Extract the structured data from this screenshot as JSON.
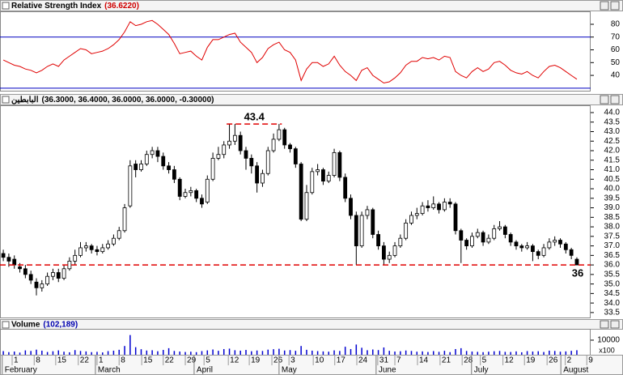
{
  "chart_data": [
    {
      "type": "line",
      "title": "Relative Strength Index",
      "subtitle": "(36.6220)",
      "color": "#e00000",
      "values": [
        52,
        50,
        48,
        47,
        45,
        44,
        42,
        44,
        47,
        49,
        47,
        52,
        55,
        58,
        61,
        60,
        57,
        58,
        59,
        61,
        64,
        68,
        74,
        82,
        79,
        80,
        82,
        83,
        80,
        76,
        72,
        65,
        57,
        58,
        59,
        55,
        52,
        62,
        68,
        68,
        70,
        72,
        73,
        66,
        62,
        58,
        50,
        54,
        61,
        64,
        66,
        60,
        58,
        52,
        36,
        45,
        50,
        50,
        47,
        49,
        55,
        48,
        43,
        40,
        36,
        44,
        46,
        40,
        37,
        34,
        35,
        38,
        42,
        48,
        51,
        51,
        54,
        53,
        54,
        52,
        55,
        54,
        43,
        40,
        38,
        43,
        46,
        43,
        45,
        50,
        51,
        48,
        44,
        42,
        41,
        43,
        40,
        38,
        43,
        47,
        48,
        46,
        43,
        40,
        37
      ],
      "xlim": [
        -0.6,
        106.5
      ],
      "ylim": [
        28,
        89.5
      ],
      "yticks": [
        40,
        50,
        60,
        70,
        80
      ],
      "reference_lines": [
        30,
        70
      ],
      "reference_color": "#0000c0"
    },
    {
      "type": "candlestick",
      "title": "البابطين",
      "subtitle": "(36.3000, 36.4000, 36.0000, 36.0000, -0.30000)",
      "up_color": "#ffffff",
      "down_color": "#000000",
      "open": [
        36.6,
        36.4,
        36.3,
        35.9,
        35.8,
        35.5,
        35.1,
        34.8,
        35.0,
        35.4,
        35.6,
        35.3,
        35.8,
        36.2,
        36.5,
        36.9,
        37.0,
        36.8,
        36.7,
        36.9,
        37.1,
        37.4,
        37.8,
        39.1,
        41.3,
        41.0,
        41.3,
        41.8,
        42.0,
        41.7,
        41.2,
        41.0,
        40.5,
        39.6,
        39.8,
        39.9,
        39.5,
        39.3,
        40.5,
        41.6,
        41.8,
        42.3,
        42.5,
        42.8,
        42.0,
        41.6,
        41.2,
        40.3,
        40.8,
        42.0,
        42.6,
        43.1,
        42.3,
        42.1,
        41.3,
        38.4,
        39.8,
        40.9,
        41.0,
        40.4,
        40.7,
        41.9,
        40.6,
        39.5,
        38.6,
        37.0,
        38.6,
        38.9,
        37.6,
        37.0,
        36.3,
        36.5,
        37.0,
        37.4,
        38.2,
        38.6,
        38.7,
        39.1,
        39.0,
        39.2,
        38.9,
        39.3,
        39.2,
        37.8,
        37.3,
        37.0,
        37.5,
        37.7,
        37.2,
        37.4,
        37.9,
        38.0,
        37.6,
        37.2,
        37.0,
        36.9,
        37.0,
        36.7,
        36.5,
        36.9,
        37.2,
        37.3,
        37.1,
        36.8,
        36.3
      ],
      "high": [
        36.8,
        36.6,
        36.5,
        36.1,
        36.0,
        35.7,
        35.3,
        35.2,
        35.6,
        35.8,
        35.8,
        36.0,
        36.4,
        36.8,
        37.2,
        37.2,
        37.1,
        37.0,
        37.1,
        37.3,
        37.6,
        38.0,
        39.2,
        41.5,
        41.5,
        41.5,
        42.0,
        42.2,
        42.2,
        41.9,
        41.4,
        41.2,
        40.6,
        40.0,
        40.1,
        40.0,
        39.7,
        40.7,
        41.9,
        42.2,
        42.5,
        43.4,
        43.4,
        43.0,
        42.2,
        41.8,
        41.4,
        41.0,
        42.2,
        42.9,
        43.4,
        43.2,
        42.4,
        42.2,
        41.4,
        40.2,
        41.1,
        41.3,
        41.1,
        40.9,
        42.1,
        42.0,
        40.8,
        39.7,
        38.8,
        38.8,
        39.1,
        39.0,
        37.8,
        37.2,
        36.7,
        37.2,
        37.6,
        38.4,
        38.8,
        39.0,
        39.3,
        39.4,
        39.6,
        39.3,
        39.5,
        39.5,
        39.3,
        37.9,
        37.4,
        37.7,
        37.9,
        37.8,
        37.6,
        38.1,
        38.3,
        38.1,
        37.7,
        37.3,
        37.1,
        37.2,
        37.1,
        36.8,
        37.1,
        37.4,
        37.5,
        37.4,
        37.2,
        36.9,
        36.4
      ],
      "low": [
        36.2,
        35.9,
        35.8,
        35.6,
        35.3,
        35.0,
        34.4,
        34.6,
        34.9,
        35.2,
        35.1,
        35.2,
        35.7,
        36.0,
        36.4,
        36.7,
        36.6,
        36.5,
        36.6,
        36.8,
        37.0,
        37.3,
        37.7,
        39.0,
        40.6,
        40.9,
        41.2,
        41.6,
        41.4,
        41.0,
        40.8,
        40.3,
        39.4,
        39.5,
        39.6,
        39.3,
        39.0,
        39.2,
        40.4,
        41.5,
        41.6,
        42.1,
        42.3,
        41.8,
        41.0,
        40.8,
        39.8,
        40.1,
        40.7,
        41.9,
        42.5,
        42.1,
        41.9,
        41.1,
        38.3,
        38.3,
        39.7,
        40.7,
        40.2,
        40.3,
        40.6,
        40.4,
        39.3,
        38.4,
        36.0,
        36.9,
        38.4,
        37.4,
        36.8,
        36.0,
        36.1,
        36.4,
        36.9,
        37.3,
        38.1,
        38.4,
        38.6,
        38.8,
        38.9,
        38.7,
        38.8,
        39.0,
        37.6,
        36.1,
        36.8,
        36.9,
        37.4,
        37.0,
        37.1,
        37.3,
        37.8,
        37.4,
        37.0,
        36.8,
        36.7,
        36.8,
        36.2,
        36.3,
        36.4,
        36.8,
        37.0,
        36.9,
        36.6,
        36.3,
        36.0
      ],
      "close": [
        36.4,
        36.2,
        36.0,
        35.8,
        35.5,
        35.2,
        34.8,
        35.0,
        35.4,
        35.6,
        35.3,
        35.8,
        36.2,
        36.5,
        36.9,
        37.0,
        36.8,
        36.7,
        36.9,
        37.1,
        37.4,
        37.8,
        39.0,
        41.2,
        41.0,
        41.3,
        41.8,
        42.0,
        41.7,
        41.2,
        41.0,
        40.5,
        39.6,
        39.8,
        39.9,
        39.5,
        39.2,
        40.5,
        41.6,
        41.8,
        42.3,
        42.5,
        42.8,
        42.0,
        41.6,
        41.2,
        40.3,
        40.8,
        42.0,
        42.6,
        43.1,
        42.3,
        42.1,
        41.3,
        38.4,
        39.8,
        40.9,
        41.0,
        40.4,
        40.7,
        41.9,
        40.6,
        39.5,
        38.6,
        37.0,
        38.6,
        38.9,
        37.6,
        37.0,
        36.3,
        36.5,
        37.0,
        37.4,
        38.2,
        38.6,
        38.7,
        39.1,
        39.0,
        39.2,
        38.9,
        39.3,
        39.2,
        37.8,
        37.3,
        37.0,
        37.5,
        37.7,
        37.2,
        37.4,
        37.9,
        38.0,
        37.6,
        37.2,
        37.0,
        36.9,
        37.0,
        36.7,
        36.5,
        36.9,
        37.2,
        37.3,
        37.1,
        36.8,
        36.5,
        36.0
      ],
      "xlim": [
        -0.6,
        106.5
      ],
      "ylim": [
        33.24,
        44.34
      ],
      "yticks": [
        {
          "value": 33.5,
          "label": "33.5"
        },
        {
          "value": 34,
          "label": "34.0"
        },
        {
          "value": 34.5,
          "label": "34.5"
        },
        {
          "value": 35,
          "label": "35.0"
        },
        {
          "value": 35.5,
          "label": "35.5"
        },
        {
          "value": 36,
          "label": "36.0"
        },
        {
          "value": 36.5,
          "label": "36.5"
        },
        {
          "value": 37,
          "label": "37.0"
        },
        {
          "value": 37.5,
          "label": "37.5"
        },
        {
          "value": 38,
          "label": "38.0"
        },
        {
          "value": 38.5,
          "label": "38.5"
        },
        {
          "value": 39,
          "label": "39.0"
        },
        {
          "value": 39.5,
          "label": "39.5"
        },
        {
          "value": 40,
          "label": "40.0"
        },
        {
          "value": 40.5,
          "label": "40.5"
        },
        {
          "value": 41,
          "label": "41.0"
        },
        {
          "value": 41.5,
          "label": "41.5"
        },
        {
          "value": 42,
          "label": "42.0"
        },
        {
          "value": 42.5,
          "label": "42.5"
        },
        {
          "value": 43,
          "label": "43.0"
        },
        {
          "value": 43.5,
          "label": "43.5"
        },
        {
          "value": 44,
          "label": "44.0"
        }
      ],
      "annotations": [
        {
          "value": 43.4,
          "x": [
            40.5,
            50.5
          ]
        },
        {
          "value": 36
        }
      ],
      "annotation_color": "#e00000"
    },
    {
      "type": "bar",
      "title": "Volume",
      "subtitle": "(102,189)",
      "color": "#0000d0",
      "values": [
        2500,
        1800,
        2200,
        1500,
        3000,
        2600,
        3500,
        2800,
        1900,
        2400,
        3000,
        2100,
        1700,
        3200,
        2600,
        2300,
        1800,
        2000,
        1600,
        2500,
        2800,
        3400,
        6000,
        13500,
        5200,
        3800,
        2900,
        3100,
        2400,
        3300,
        4500,
        2600,
        2200,
        1900,
        2100,
        1800,
        2500,
        3000,
        3600,
        2700,
        3900,
        4200,
        3100,
        2800,
        3300,
        2400,
        2900,
        2600,
        3500,
        3800,
        4100,
        2900,
        3200,
        2700,
        6000,
        3400,
        2800,
        2500,
        2300,
        2100,
        3000,
        2600,
        5500,
        3900,
        7000,
        4800,
        3100,
        3600,
        3200,
        5000,
        2700,
        2200,
        2400,
        2900,
        2600,
        2100,
        2300,
        1900,
        2500,
        2000,
        2700,
        1800,
        3900,
        4500,
        2600,
        2200,
        2000,
        1800,
        2100,
        2400,
        2600,
        2000,
        1900,
        2300,
        1700,
        2500,
        2200,
        2400,
        1900,
        2800,
        2600,
        2100,
        2300,
        2700,
        3100
      ],
      "xlim": [
        -0.6,
        106.5
      ],
      "ylim": [
        0,
        17200
      ],
      "yticks": [
        10000
      ],
      "multiplier": "x100",
      "xticks": [
        {
          "value": 1.6,
          "label": "1"
        },
        {
          "value": 5.6,
          "label": "8"
        },
        {
          "value": 9.5,
          "label": "15"
        },
        {
          "value": 13.6,
          "label": "22"
        },
        {
          "value": 17.0,
          "label": "1"
        },
        {
          "value": 21.0,
          "label": "8"
        },
        {
          "value": 25.1,
          "label": "15"
        },
        {
          "value": 29.0,
          "label": "22"
        },
        {
          "value": 33.0,
          "label": "29"
        },
        {
          "value": 36.4,
          "label": "5"
        },
        {
          "value": 40.8,
          "label": "12"
        },
        {
          "value": 44.6,
          "label": "19"
        },
        {
          "value": 48.7,
          "label": "26"
        },
        {
          "value": 51.8,
          "label": "3"
        },
        {
          "value": 56.2,
          "label": "10"
        },
        {
          "value": 60.1,
          "label": "17"
        },
        {
          "value": 64.1,
          "label": "24"
        },
        {
          "value": 67.9,
          "label": "31"
        },
        {
          "value": 71.0,
          "label": "7"
        },
        {
          "value": 75.1,
          "label": "14"
        },
        {
          "value": 79.2,
          "label": "21"
        },
        {
          "value": 83.2,
          "label": "28"
        },
        {
          "value": 86.5,
          "label": "5"
        },
        {
          "value": 90.6,
          "label": "12"
        },
        {
          "value": 94.5,
          "label": "19"
        },
        {
          "value": 98.6,
          "label": "26"
        },
        {
          "value": 101.9,
          "label": "2"
        },
        {
          "value": 105.8,
          "label": "9"
        }
      ],
      "months": [
        {
          "value": -0.2,
          "label": "February"
        },
        {
          "value": 16.7,
          "label": "March"
        },
        {
          "value": 34.6,
          "label": "April"
        },
        {
          "value": 50.0,
          "label": "May"
        },
        {
          "value": 67.6,
          "label": "June"
        },
        {
          "value": 84.9,
          "label": "July"
        },
        {
          "value": 101.1,
          "label": "August"
        }
      ]
    }
  ]
}
